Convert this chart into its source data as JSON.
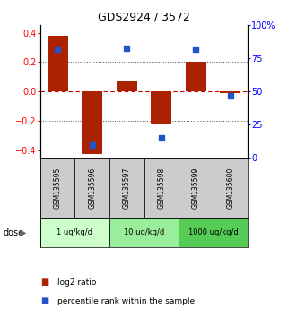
{
  "title": "GDS2924 / 3572",
  "samples": [
    "GSM135595",
    "GSM135596",
    "GSM135597",
    "GSM135598",
    "GSM135599",
    "GSM135600"
  ],
  "log2_ratio": [
    0.38,
    -0.42,
    0.07,
    -0.22,
    0.2,
    -0.01
  ],
  "percentile_rank": [
    82,
    10,
    83,
    15,
    82,
    47
  ],
  "bar_color": "#aa2200",
  "dot_color": "#2255cc",
  "doses": [
    {
      "label": "1 ug/kg/d",
      "color": "#ccffcc",
      "start": 0,
      "end": 2
    },
    {
      "label": "10 ug/kg/d",
      "color": "#99ee99",
      "start": 2,
      "end": 4
    },
    {
      "label": "1000 ug/kg/d",
      "color": "#55cc55",
      "start": 4,
      "end": 6
    }
  ],
  "ylim_left": [
    -0.45,
    0.45
  ],
  "ylim_right": [
    0,
    100
  ],
  "yticks_left": [
    -0.4,
    -0.2,
    0.0,
    0.2,
    0.4
  ],
  "yticks_right": [
    0,
    25,
    50,
    75,
    100
  ],
  "ytick_labels_right": [
    "0",
    "25",
    "50",
    "75",
    "100%"
  ],
  "hlines_dotted": [
    -0.2,
    0.2
  ],
  "hline_dashed_red": 0.0,
  "zero_line_color": "#cc0000",
  "grid_color": "#555555",
  "sample_bg_color": "#cccccc",
  "bar_width": 0.6,
  "legend_items": [
    {
      "color": "#aa2200",
      "label": "log2 ratio"
    },
    {
      "color": "#2255cc",
      "label": "percentile rank within the sample"
    }
  ]
}
